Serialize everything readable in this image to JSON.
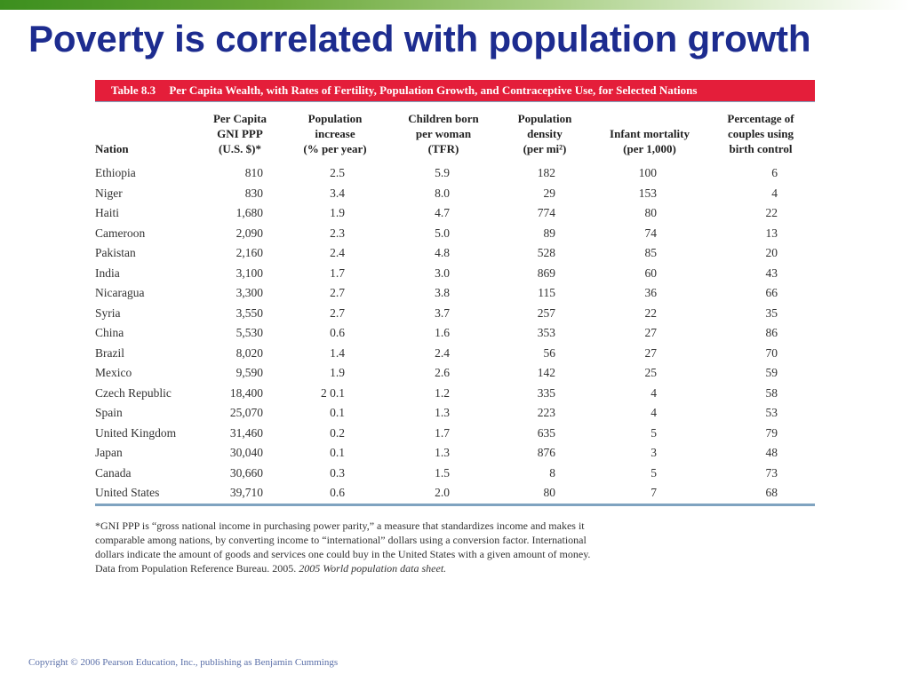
{
  "slide": {
    "title": "Poverty is correlated with population growth",
    "copyright": "Copyright © 2006 Pearson Education, Inc., publishing as Benjamin Cummings",
    "accent_color": "#1d2c8f",
    "top_bar_color": "#3c8f1e"
  },
  "table": {
    "number": "Table 8.3",
    "caption": "Per Capita Wealth, with Rates of Fertility, Population Growth, and Contraceptive Use, for Selected Nations",
    "caption_color": "#e41e3a",
    "headers": [
      {
        "lines": [
          "Nation"
        ]
      },
      {
        "lines": [
          "Per Capita",
          "GNI PPP",
          "(U.S. $)*"
        ]
      },
      {
        "lines": [
          "Population",
          "increase",
          "(% per year)"
        ]
      },
      {
        "lines": [
          "Children born",
          "per woman",
          "(TFR)"
        ]
      },
      {
        "lines": [
          "Population",
          "density",
          "(per mi²)"
        ]
      },
      {
        "lines": [
          "Infant mortality",
          "(per 1,000)"
        ]
      },
      {
        "lines": [
          "Percentage of",
          "couples using",
          "birth control"
        ]
      }
    ],
    "rows": [
      [
        "Ethiopia",
        "810",
        "2.5",
        "5.9",
        "182",
        "100",
        "6"
      ],
      [
        "Niger",
        "830",
        "3.4",
        "8.0",
        "29",
        "153",
        "4"
      ],
      [
        "Haiti",
        "1,680",
        "1.9",
        "4.7",
        "774",
        "80",
        "22"
      ],
      [
        "Cameroon",
        "2,090",
        "2.3",
        "5.0",
        "89",
        "74",
        "13"
      ],
      [
        "Pakistan",
        "2,160",
        "2.4",
        "4.8",
        "528",
        "85",
        "20"
      ],
      [
        "India",
        "3,100",
        "1.7",
        "3.0",
        "869",
        "60",
        "43"
      ],
      [
        "Nicaragua",
        "3,300",
        "2.7",
        "3.8",
        "115",
        "36",
        "66"
      ],
      [
        "Syria",
        "3,550",
        "2.7",
        "3.7",
        "257",
        "22",
        "35"
      ],
      [
        "China",
        "5,530",
        "0.6",
        "1.6",
        "353",
        "27",
        "86"
      ],
      [
        "Brazil",
        "8,020",
        "1.4",
        "2.4",
        "56",
        "27",
        "70"
      ],
      [
        "Mexico",
        "9,590",
        "1.9",
        "2.6",
        "142",
        "25",
        "59"
      ],
      [
        "Czech Republic",
        "18,400",
        "2 0.1",
        "1.2",
        "335",
        "4",
        "58"
      ],
      [
        "Spain",
        "25,070",
        "0.1",
        "1.3",
        "223",
        "4",
        "53"
      ],
      [
        "United Kingdom",
        "31,460",
        "0.2",
        "1.7",
        "635",
        "5",
        "79"
      ],
      [
        "Japan",
        "30,040",
        "0.1",
        "1.3",
        "876",
        "3",
        "48"
      ],
      [
        "Canada",
        "30,660",
        "0.3",
        "1.5",
        "8",
        "5",
        "73"
      ],
      [
        "United States",
        "39,710",
        "0.6",
        "2.0",
        "80",
        "7",
        "68"
      ]
    ],
    "footnote": {
      "text": "*GNI PPP is “gross national income in purchasing power parity,” a measure that standardizes income and makes it comparable among nations, by converting income to “international” dollars using a conversion factor. International dollars indicate the amount of goods and services one could buy in the United States with a given amount of money. Data from Population Reference Bureau. 2005.",
      "source_title": "2005 World population data sheet."
    }
  }
}
